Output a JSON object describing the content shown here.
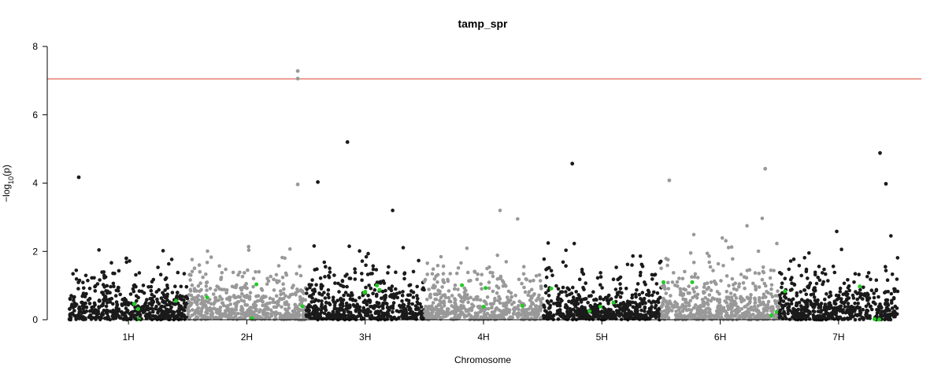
{
  "chart_data": {
    "type": "scatter",
    "title": "tamp_spr",
    "xlabel": "Chromosome",
    "ylabel_prefix": "−log",
    "ylabel_sub": "10",
    "ylabel_suffix": "(p)",
    "ylim": [
      0,
      8
    ],
    "yticks": [
      0,
      2,
      4,
      6,
      8
    ],
    "threshold": 7.05,
    "threshold_color": "#e8877f",
    "chromosomes": [
      "1H",
      "2H",
      "3H",
      "4H",
      "5H",
      "6H",
      "7H"
    ],
    "chromosome_colors": [
      "#1a1a1a",
      "#999999",
      "#1a1a1a",
      "#999999",
      "#1a1a1a",
      "#999999",
      "#1a1a1a"
    ],
    "highlight_color": "#22cc22",
    "top_hits": [
      {
        "chromosome": "2H",
        "pos": 0.93,
        "value": 7.28
      },
      {
        "chromosome": "2H",
        "pos": 0.93,
        "value": 7.06
      },
      {
        "chromosome": "3H",
        "pos": 0.35,
        "value": 5.2
      },
      {
        "chromosome": "5H",
        "pos": 0.25,
        "value": 4.57
      },
      {
        "chromosome": "7H",
        "pos": 0.85,
        "value": 4.88
      },
      {
        "chromosome": "6H",
        "pos": 0.88,
        "value": 4.42
      },
      {
        "chromosome": "1H",
        "pos": 0.08,
        "value": 4.17
      },
      {
        "chromosome": "6H",
        "pos": 0.07,
        "value": 4.08
      },
      {
        "chromosome": "3H",
        "pos": 0.1,
        "value": 4.03
      },
      {
        "chromosome": "2H",
        "pos": 0.93,
        "value": 3.96
      },
      {
        "chromosome": "7H",
        "pos": 0.9,
        "value": 3.98
      }
    ]
  }
}
